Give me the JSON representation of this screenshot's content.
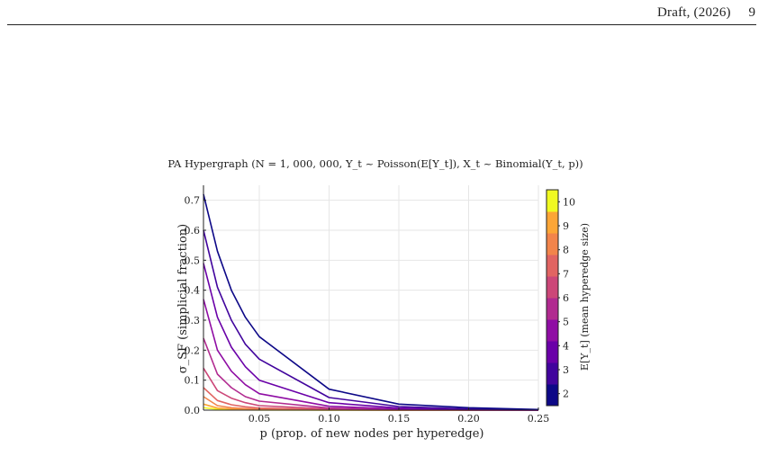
{
  "page_header": {
    "text": "Draft, (2026)",
    "page_number": "9"
  },
  "chart_data": {
    "type": "line",
    "title": "PA Hypergraph (N = 1, 000, 000, Y_t ~ Poisson(E[Y_t]), X_t ~ Binomial(Y_t, p))",
    "xlabel": "p (prop. of new nodes per hyperedge)",
    "ylabel": "σ_SF (simplicial fraction)",
    "xlim": [
      0.01,
      0.25
    ],
    "ylim": [
      0,
      0.75
    ],
    "xticks": [
      "0.05",
      "0.10",
      "0.15",
      "0.20",
      "0.25"
    ],
    "xtick_values": [
      0.05,
      0.1,
      0.15,
      0.2,
      0.25
    ],
    "yticks": [
      "0.0",
      "0.1",
      "0.2",
      "0.3",
      "0.4",
      "0.5",
      "0.6",
      "0.7"
    ],
    "ytick_values": [
      0.0,
      0.1,
      0.2,
      0.3,
      0.4,
      0.5,
      0.6,
      0.7
    ],
    "grid": true,
    "colorbar": {
      "label": "E[Y_t] (mean hyperedge size)",
      "range": [
        1.5,
        10.5
      ],
      "ticks": [
        "2",
        "3",
        "4",
        "5",
        "6",
        "7",
        "8",
        "9",
        "10"
      ],
      "tick_values": [
        2,
        3,
        4,
        5,
        6,
        7,
        8,
        9,
        10
      ],
      "colors": [
        "#0d0887",
        "#41049d",
        "#6a00a8",
        "#8f0da4",
        "#b12a90",
        "#cc4778",
        "#e16462",
        "#f2844b",
        "#fca636",
        "#f0f921"
      ]
    },
    "x": [
      0.01,
      0.02,
      0.03,
      0.04,
      0.05,
      0.1,
      0.15,
      0.2,
      0.25
    ],
    "series": [
      {
        "color_value": 2,
        "color": "#0d0887",
        "values": [
          0.72,
          0.53,
          0.4,
          0.31,
          0.245,
          0.07,
          0.02,
          0.008,
          0.002
        ]
      },
      {
        "color_value": 3,
        "color": "#41049d",
        "values": [
          0.6,
          0.41,
          0.3,
          0.22,
          0.17,
          0.042,
          0.012,
          0.004,
          0.001
        ]
      },
      {
        "color_value": 4,
        "color": "#6a00a8",
        "values": [
          0.49,
          0.31,
          0.21,
          0.145,
          0.1,
          0.025,
          0.007,
          0.002,
          0.0005
        ]
      },
      {
        "color_value": 5,
        "color": "#8f0da4",
        "values": [
          0.37,
          0.2,
          0.13,
          0.085,
          0.055,
          0.013,
          0.004,
          0.001,
          0.0003
        ]
      },
      {
        "color_value": 6,
        "color": "#b12a90",
        "values": [
          0.24,
          0.12,
          0.075,
          0.045,
          0.03,
          0.007,
          0.002,
          0.0005,
          0.0001
        ]
      },
      {
        "color_value": 7,
        "color": "#cc4778",
        "values": [
          0.14,
          0.065,
          0.04,
          0.025,
          0.015,
          0.004,
          0.001,
          0.0003,
          0.0001
        ]
      },
      {
        "color_value": 8,
        "color": "#e16462",
        "values": [
          0.075,
          0.032,
          0.018,
          0.011,
          0.007,
          0.002,
          0.0006,
          0.0002,
          0.0001
        ]
      },
      {
        "color_value": 9,
        "color": "#f2844b",
        "values": [
          0.045,
          0.015,
          0.008,
          0.005,
          0.003,
          0.001,
          0.0003,
          0.0001,
          0.0
        ]
      },
      {
        "color_value": 10,
        "color": "#fca636",
        "values": [
          0.02,
          0.007,
          0.004,
          0.002,
          0.0015,
          0.0005,
          0.0001,
          0.0,
          0.0
        ]
      },
      {
        "color_value": 10.5,
        "color": "#f0f921",
        "values": [
          0.008,
          0.003,
          0.0015,
          0.001,
          0.0005,
          0.0002,
          0.0001,
          0.0,
          0.0
        ]
      }
    ]
  }
}
